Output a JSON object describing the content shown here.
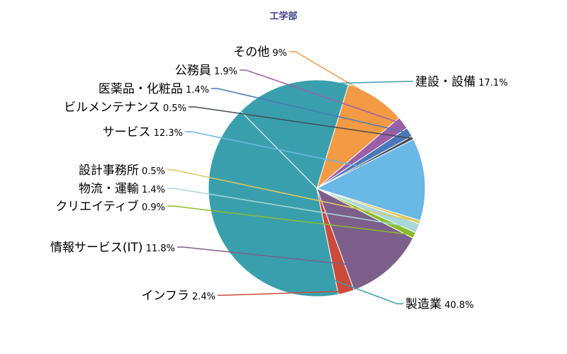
{
  "chart_data": {
    "type": "pie",
    "title": "工学部",
    "start_category": "製造業",
    "direction": "counterclockwise from 建設・設備 boundary",
    "slices": [
      {
        "label": "製造業",
        "value": 40.8,
        "value_label": "40.8%",
        "color": "#3a9fad"
      },
      {
        "label": "インフラ",
        "value": 2.4,
        "value_label": "2.4%",
        "color": "#cc4b3c"
      },
      {
        "label": "情報サービス(IT)",
        "value": 11.8,
        "value_label": "11.8%",
        "color": "#7d5f8c"
      },
      {
        "label": "クリエイティブ",
        "value": 0.9,
        "value_label": "0.9%",
        "color": "#8bbd2a"
      },
      {
        "label": "物流・運輸",
        "value": 1.4,
        "value_label": "1.4%",
        "color": "#a8d8d8"
      },
      {
        "label": "設計事務所",
        "value": 0.5,
        "value_label": "0.5%",
        "color": "#e0c75a"
      },
      {
        "label": "サービス",
        "value": 12.3,
        "value_label": "12.3%",
        "color": "#6ab8e6"
      },
      {
        "label": "ビルメンテナンス",
        "value": 0.5,
        "value_label": "0.5%",
        "color": "#444a55"
      },
      {
        "label": "医薬品・化粧品",
        "value": 1.4,
        "value_label": "1.4%",
        "color": "#4a78b8"
      },
      {
        "label": "公務員",
        "value": 1.9,
        "value_label": "1.9%",
        "color": "#9b5fa8"
      },
      {
        "label": "その他",
        "value": 9,
        "value_label": "9%",
        "color": "#f39a45"
      },
      {
        "label": "建設・設備",
        "value": 17.1,
        "value_label": "17.1%",
        "color": "#3a9fad"
      }
    ]
  }
}
